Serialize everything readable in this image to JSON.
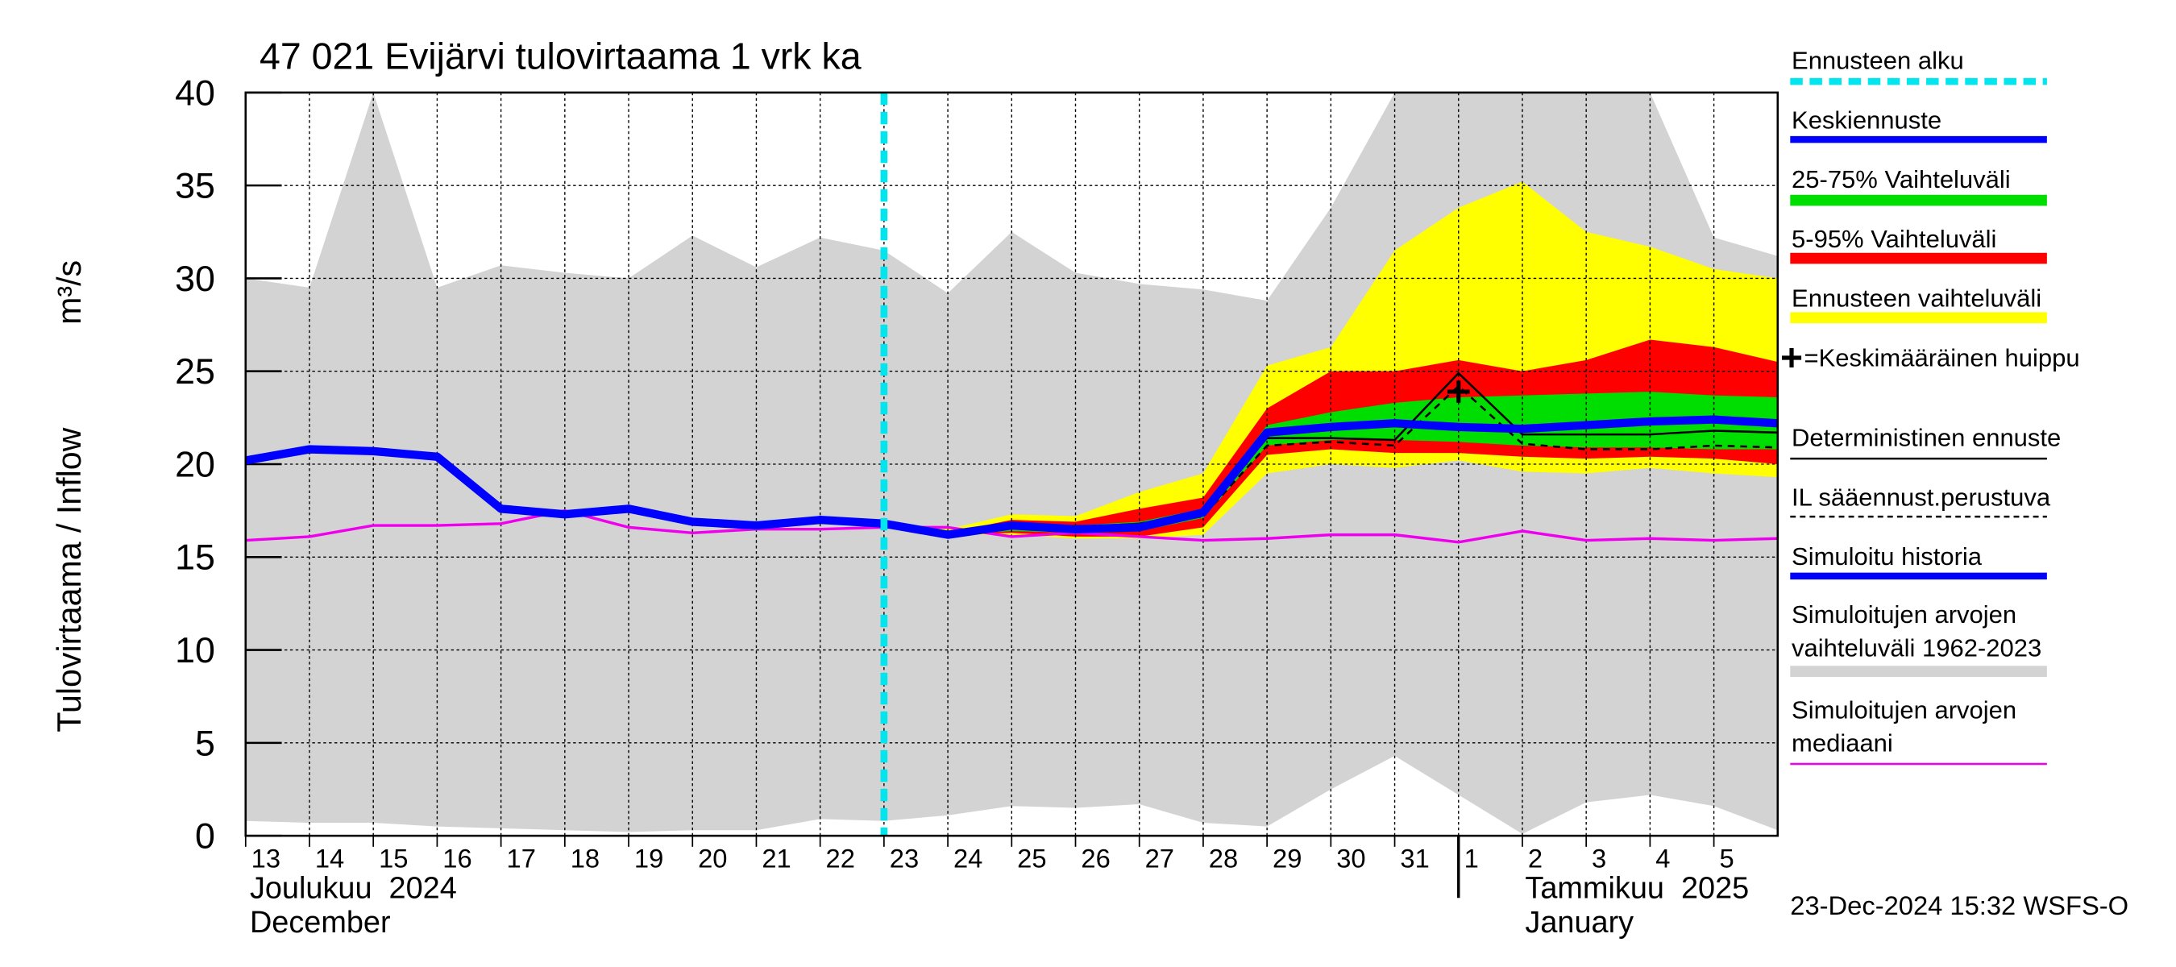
{
  "chart_data": {
    "type": "line",
    "title": "47 021 Evijärvi tulovirtaama 1 vrk ka",
    "y_label": "Tulovirtaama / Inflow",
    "y_unit": "m³/s",
    "timestamp": "23-Dec-2024 15:32 WSFS-O",
    "ylim": [
      0,
      40
    ],
    "yticks": [
      0,
      5,
      10,
      15,
      20,
      25,
      30,
      35,
      40
    ],
    "xlim": [
      "2024-12-13",
      "2025-01-06"
    ],
    "xticks": [
      {
        "value": "2024-12-13",
        "label": "13"
      },
      {
        "value": "2024-12-14",
        "label": "14"
      },
      {
        "value": "2024-12-15",
        "label": "15"
      },
      {
        "value": "2024-12-16",
        "label": "16"
      },
      {
        "value": "2024-12-17",
        "label": "17"
      },
      {
        "value": "2024-12-18",
        "label": "18"
      },
      {
        "value": "2024-12-19",
        "label": "19"
      },
      {
        "value": "2024-12-20",
        "label": "20"
      },
      {
        "value": "2024-12-21",
        "label": "21"
      },
      {
        "value": "2024-12-22",
        "label": "22"
      },
      {
        "value": "2024-12-23",
        "label": "23"
      },
      {
        "value": "2024-12-24",
        "label": "24"
      },
      {
        "value": "2024-12-25",
        "label": "25"
      },
      {
        "value": "2024-12-26",
        "label": "26"
      },
      {
        "value": "2024-12-27",
        "label": "27"
      },
      {
        "value": "2024-12-28",
        "label": "28"
      },
      {
        "value": "2024-12-29",
        "label": "29"
      },
      {
        "value": "2024-12-30",
        "label": "30"
      },
      {
        "value": "2024-12-31",
        "label": "31"
      },
      {
        "value": "2025-01-01",
        "label": "1"
      },
      {
        "value": "2025-01-02",
        "label": "2"
      },
      {
        "value": "2025-01-03",
        "label": "3"
      },
      {
        "value": "2025-01-04",
        "label": "4"
      },
      {
        "value": "2025-01-05",
        "label": "5"
      }
    ],
    "month_labels": [
      {
        "x": "2024-12-13",
        "label": "Joulukuu  2024",
        "label_en": "December"
      },
      {
        "x": "2025-01-01",
        "label": "Tammikuu  2025",
        "label_en": "January"
      }
    ],
    "grid": true,
    "x": [
      "2024-12-13",
      "2024-12-14",
      "2024-12-15",
      "2024-12-16",
      "2024-12-17",
      "2024-12-18",
      "2024-12-19",
      "2024-12-20",
      "2024-12-21",
      "2024-12-22",
      "2024-12-23",
      "2024-12-24",
      "2024-12-25",
      "2024-12-26",
      "2024-12-27",
      "2024-12-28",
      "2024-12-29",
      "2024-12-30",
      "2024-12-31",
      "2025-01-01",
      "2025-01-02",
      "2025-01-03",
      "2025-01-04",
      "2025-01-05",
      "2025-01-06"
    ],
    "forecast_start": {
      "name": "Ennusteen alku",
      "x": "2024-12-23",
      "color": "#00e5ee"
    },
    "series": [
      {
        "name": "Keskiennuste",
        "kind": "line",
        "color": "#0000ff",
        "width": 6,
        "values": [
          null,
          null,
          null,
          null,
          null,
          null,
          null,
          null,
          null,
          null,
          16.8,
          16.2,
          16.7,
          16.5,
          16.6,
          17.4,
          21.7,
          22.0,
          22.2,
          22.0,
          21.9,
          22.1,
          22.3,
          22.4,
          22.2
        ]
      },
      {
        "name": "25-75% Vaihteluväli",
        "kind": "band",
        "color": "#00dd00",
        "values": [
          null,
          null,
          null,
          null,
          null,
          null,
          null,
          null,
          null,
          null,
          16.8,
          16.2,
          16.8,
          16.7,
          16.9,
          17.6,
          22.1,
          22.8,
          23.3,
          23.6,
          23.7,
          23.8,
          23.9,
          23.7,
          23.6
        ],
        "lower": [
          null,
          null,
          null,
          null,
          null,
          null,
          null,
          null,
          null,
          null,
          16.8,
          16.2,
          16.4,
          16.3,
          16.4,
          17.1,
          21.0,
          21.3,
          21.3,
          21.2,
          21.0,
          20.9,
          20.9,
          20.8,
          20.8
        ]
      },
      {
        "name": "5-95% Vaihteluväli",
        "kind": "band",
        "color": "#ff0000",
        "values": [
          null,
          null,
          null,
          null,
          null,
          null,
          null,
          null,
          null,
          null,
          16.8,
          16.3,
          17.0,
          16.9,
          17.6,
          18.2,
          23.0,
          25.0,
          25.0,
          25.6,
          25.0,
          25.6,
          26.7,
          26.3,
          25.5
        ],
        "lower": [
          null,
          null,
          null,
          null,
          null,
          null,
          null,
          null,
          null,
          null,
          16.8,
          16.2,
          16.3,
          16.1,
          16.1,
          16.6,
          20.5,
          20.8,
          20.6,
          20.6,
          20.4,
          20.3,
          20.4,
          20.3,
          20.0
        ]
      },
      {
        "name": "Ennusteen vaihteluväli",
        "kind": "band",
        "color": "#ffff00",
        "values": [
          null,
          null,
          null,
          null,
          null,
          null,
          null,
          null,
          null,
          null,
          16.8,
          16.5,
          17.3,
          17.2,
          18.5,
          19.5,
          25.3,
          26.3,
          31.5,
          33.8,
          35.2,
          32.5,
          31.7,
          30.5,
          30.0
        ],
        "lower": [
          null,
          null,
          null,
          null,
          null,
          null,
          null,
          null,
          null,
          null,
          16.8,
          16.2,
          16.2,
          16.0,
          16.0,
          16.2,
          19.5,
          20.0,
          19.8,
          20.2,
          19.6,
          19.5,
          19.8,
          19.5,
          19.3
        ]
      },
      {
        "name": "=Keskimääräinen huippu",
        "kind": "peak",
        "color": "#000000",
        "x": "2025-01-01",
        "value": 23.9
      },
      {
        "name": "Deterministinen ennuste",
        "kind": "line",
        "color": "#000000",
        "width": 1.5,
        "values": [
          null,
          null,
          null,
          null,
          null,
          null,
          null,
          null,
          null,
          null,
          16.8,
          16.2,
          16.7,
          16.6,
          16.8,
          17.4,
          21.4,
          21.4,
          21.3,
          24.9,
          21.6,
          21.6,
          21.6,
          21.8,
          21.7
        ]
      },
      {
        "name": "IL sääennust.perustuva",
        "kind": "line",
        "color": "#000000",
        "width": 1.5,
        "dash": true,
        "values": [
          null,
          null,
          null,
          null,
          null,
          null,
          null,
          null,
          null,
          null,
          16.8,
          16.2,
          16.6,
          16.5,
          16.6,
          17.2,
          21.0,
          21.2,
          21.0,
          24.2,
          21.1,
          20.8,
          20.8,
          21.0,
          20.9
        ]
      },
      {
        "name": "Simuloitu historia",
        "kind": "line",
        "color": "#0000ff",
        "width": 6,
        "values": [
          20.2,
          20.8,
          20.7,
          20.4,
          17.6,
          17.3,
          17.6,
          16.9,
          16.7,
          17.0,
          16.8,
          null,
          null,
          null,
          null,
          null,
          null,
          null,
          null,
          null,
          null,
          null,
          null,
          null,
          null
        ]
      },
      {
        "name": "Simuloitujen arvojen vaihteluväli 1962-2023",
        "kind": "band",
        "color": "#d3d3d3",
        "values": [
          30.0,
          29.5,
          40.0,
          29.5,
          30.7,
          30.3,
          30.0,
          32.3,
          30.6,
          32.2,
          31.5,
          29.2,
          32.5,
          30.3,
          29.7,
          29.4,
          28.8,
          33.8,
          40.0,
          40.0,
          40.0,
          40.0,
          40.0,
          32.2,
          31.2
        ],
        "lower": [
          0.8,
          0.7,
          0.7,
          0.5,
          0.4,
          0.3,
          0.2,
          0.3,
          0.3,
          0.9,
          0.8,
          1.1,
          1.6,
          1.5,
          1.7,
          0.7,
          0.5,
          2.5,
          4.3,
          2.2,
          0.1,
          1.8,
          2.2,
          1.6,
          0.3
        ]
      },
      {
        "name": "Simuloitujen arvojen mediaani",
        "kind": "line",
        "color": "#ee00ee",
        "width": 2,
        "values": [
          15.9,
          16.1,
          16.7,
          16.7,
          16.8,
          17.5,
          16.6,
          16.3,
          16.5,
          16.5,
          16.6,
          16.6,
          16.1,
          16.3,
          16.1,
          15.9,
          16.0,
          16.2,
          16.2,
          15.8,
          16.4,
          15.9,
          16.0,
          15.9,
          16.0
        ]
      }
    ]
  }
}
